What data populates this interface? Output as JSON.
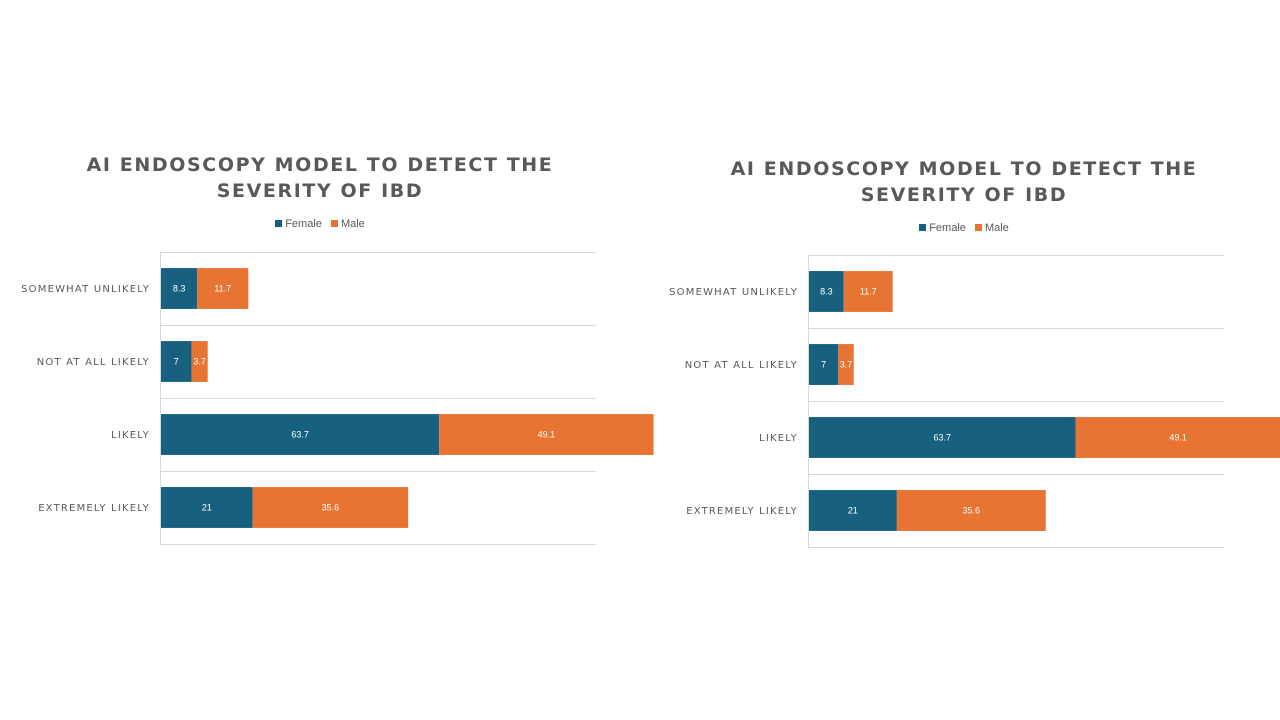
{
  "colors": {
    "female": "#17607f",
    "male": "#e87433",
    "grid": "#d9d9d9",
    "text": "#595959"
  },
  "chart_data": [
    {
      "type": "bar",
      "orientation": "horizontal",
      "stacked": true,
      "title_lines": [
        "AI ENDOSCOPY MODEL TO DETECT THE",
        "SEVERITY OF IBD"
      ],
      "legend": [
        "Female",
        "Male"
      ],
      "legend_position": "top",
      "categories": [
        "SOMEWHAT UNLIKELY",
        "NOT AT ALL LIKELY",
        "LIKELY",
        "EXTREMELY LIKELY"
      ],
      "series": [
        {
          "name": "Female",
          "values": [
            8.3,
            7,
            63.7,
            21
          ]
        },
        {
          "name": "Male",
          "values": [
            11.7,
            3.7,
            49.1,
            35.6
          ]
        }
      ],
      "xlim": [
        0,
        120
      ],
      "grid": "horizontal"
    },
    {
      "type": "bar",
      "orientation": "horizontal",
      "stacked": true,
      "title_lines": [
        "AI ENDOSCOPY MODEL TO DETECT THE",
        "SEVERITY OF IBD"
      ],
      "legend": [
        "Female",
        "Male"
      ],
      "legend_position": "top",
      "categories": [
        "SOMEWHAT UNLIKELY",
        "NOT AT ALL LIKELY",
        "LIKELY",
        "EXTREMELY LIKELY"
      ],
      "series": [
        {
          "name": "Female",
          "values": [
            8.3,
            7,
            63.7,
            21
          ]
        },
        {
          "name": "Male",
          "values": [
            11.7,
            3.7,
            49.1,
            35.6
          ]
        }
      ],
      "xlim": [
        0,
        120
      ],
      "grid": "horizontal"
    }
  ]
}
